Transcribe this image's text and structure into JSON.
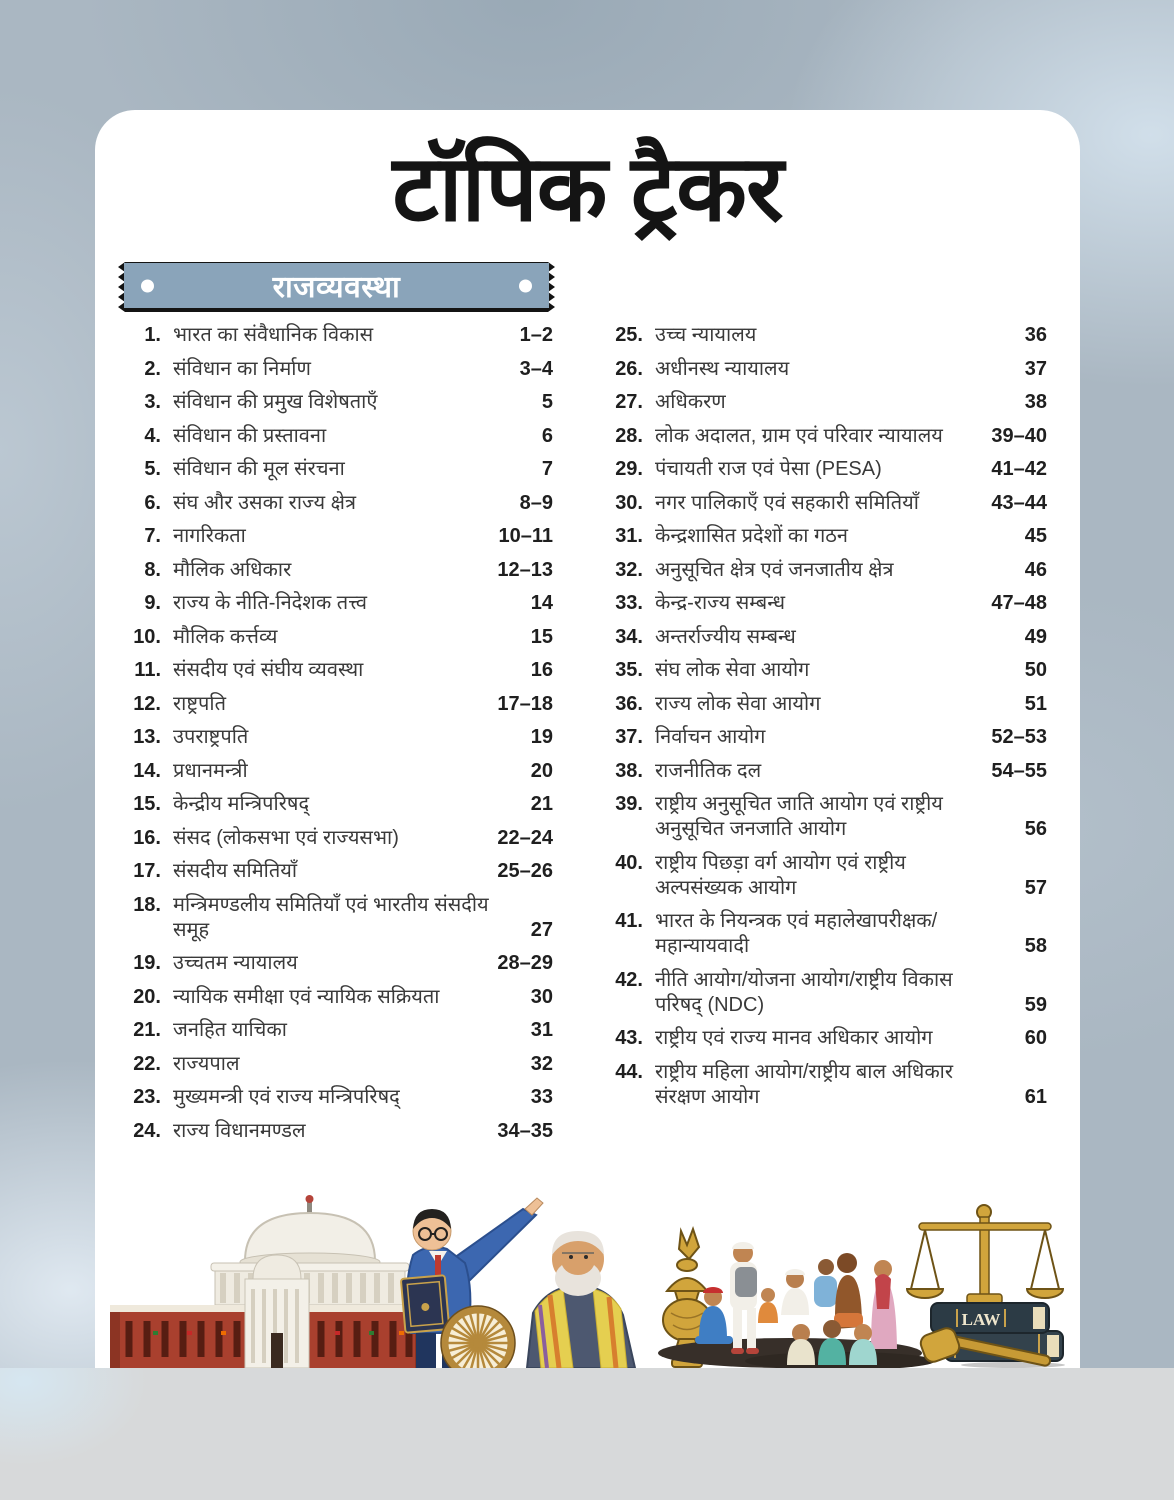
{
  "header": {
    "title": "टॉपिक ट्रैकर"
  },
  "section": {
    "label": "राजव्यवस्था"
  },
  "illustration": {
    "law_label": "LAW"
  },
  "colors": {
    "banner_blue": "#8aa4ba",
    "background_blue_gray": "#aab7c2",
    "card_white": "#ffffff",
    "bottom_strip_gray": "#d7d9da",
    "text_dark": "#1f1f1f",
    "gold": "#d1a53c"
  },
  "toc": {
    "left": [
      {
        "num": "1.",
        "title": "भारत का संवैधानिक विकास",
        "pages": "1–2"
      },
      {
        "num": "2.",
        "title": "संविधान का निर्माण",
        "pages": "3–4"
      },
      {
        "num": "3.",
        "title": "संविधान की प्रमुख विशेषताएँ",
        "pages": "5"
      },
      {
        "num": "4.",
        "title": "संविधान की प्रस्तावना",
        "pages": "6"
      },
      {
        "num": "5.",
        "title": "संविधान की मूल संरचना",
        "pages": "7"
      },
      {
        "num": "6.",
        "title": "संघ और उसका राज्य क्षेत्र",
        "pages": "8–9"
      },
      {
        "num": "7.",
        "title": "नागरिकता",
        "pages": "10–11"
      },
      {
        "num": "8.",
        "title": "मौलिक अधिकार",
        "pages": "12–13"
      },
      {
        "num": "9.",
        "title": "राज्य के नीति-निदेशक तत्त्व",
        "pages": "14"
      },
      {
        "num": "10.",
        "title": "मौलिक कर्त्तव्य",
        "pages": "15"
      },
      {
        "num": "11.",
        "title": "संसदीय एवं संघीय व्यवस्था",
        "pages": "16"
      },
      {
        "num": "12.",
        "title": "राष्ट्रपति",
        "pages": "17–18"
      },
      {
        "num": "13.",
        "title": "उपराष्ट्रपति",
        "pages": "19"
      },
      {
        "num": "14.",
        "title": "प्रधानमन्त्री",
        "pages": "20"
      },
      {
        "num": "15.",
        "title": "केन्द्रीय मन्त्रिपरिषद्",
        "pages": "21"
      },
      {
        "num": "16.",
        "title": "संसद (लोकसभा एवं राज्यसभा)",
        "pages": "22–24"
      },
      {
        "num": "17.",
        "title": "संसदीय समितियाँ",
        "pages": "25–26"
      },
      {
        "num": "18.",
        "title": "मन्त्रिमण्डलीय समितियाँ एवं भारतीय संसदीय समूह",
        "pages": "27"
      },
      {
        "num": "19.",
        "title": "उच्चतम न्यायालय",
        "pages": "28–29"
      },
      {
        "num": "20.",
        "title": "न्यायिक समीक्षा एवं न्यायिक सक्रियता",
        "pages": "30"
      },
      {
        "num": "21.",
        "title": "जनहित याचिका",
        "pages": "31"
      },
      {
        "num": "22.",
        "title": "राज्यपाल",
        "pages": "32"
      },
      {
        "num": "23.",
        "title": "मुख्यमन्त्री एवं राज्य मन्त्रिपरिषद्",
        "pages": "33"
      },
      {
        "num": "24.",
        "title": "राज्य विधानमण्डल",
        "pages": "34–35"
      }
    ],
    "right": [
      {
        "num": "25.",
        "title": "उच्च न्यायालय",
        "pages": "36"
      },
      {
        "num": "26.",
        "title": "अधीनस्थ न्यायालय",
        "pages": "37"
      },
      {
        "num": "27.",
        "title": "अधिकरण",
        "pages": "38"
      },
      {
        "num": "28.",
        "title": "लोक अदालत, ग्राम एवं परिवार न्यायालय",
        "pages": "39–40"
      },
      {
        "num": "29.",
        "title": "पंचायती राज एवं पेसा (PESA)",
        "pages": "41–42"
      },
      {
        "num": "30.",
        "title": "नगर पालिकाएँ एवं सहकारी समितियाँ",
        "pages": "43–44"
      },
      {
        "num": "31.",
        "title": "केन्द्रशासित प्रदेशों का गठन",
        "pages": "45"
      },
      {
        "num": "32.",
        "title": "अनुसूचित क्षेत्र एवं जनजातीय क्षेत्र",
        "pages": "46"
      },
      {
        "num": "33.",
        "title": "केन्द्र-राज्य सम्बन्ध",
        "pages": "47–48"
      },
      {
        "num": "34.",
        "title": "अन्तर्राज्यीय सम्बन्ध",
        "pages": "49"
      },
      {
        "num": "35.",
        "title": "संघ लोक सेवा आयोग",
        "pages": "50"
      },
      {
        "num": "36.",
        "title": "राज्य लोक सेवा आयोग",
        "pages": "51"
      },
      {
        "num": "37.",
        "title": "निर्वाचन आयोग",
        "pages": "52–53"
      },
      {
        "num": "38.",
        "title": "राजनीतिक दल",
        "pages": "54–55"
      },
      {
        "num": "39.",
        "title": "राष्ट्रीय अनुसूचित जाति आयोग एवं राष्ट्रीय अनुसूचित जनजाति आयोग",
        "pages": "56"
      },
      {
        "num": "40.",
        "title": "राष्ट्रीय पिछड़ा वर्ग आयोग एवं राष्ट्रीय अल्पसंख्यक आयोग",
        "pages": "57"
      },
      {
        "num": "41.",
        "title": "भारत के नियन्त्रक एवं महालेखापरीक्षक/महान्यायवादी",
        "pages": "58"
      },
      {
        "num": "42.",
        "title": "नीति आयोग/योजना आयोग/राष्ट्रीय विकास परिषद् (NDC)",
        "pages": "59"
      },
      {
        "num": "43.",
        "title": "राष्ट्रीय एवं राज्य मानव अधिकार आयोग",
        "pages": "60"
      },
      {
        "num": "44.",
        "title": "राष्ट्रीय महिला आयोग/राष्ट्रीय बाल अधिकार संरक्षण आयोग",
        "pages": "61"
      }
    ]
  }
}
